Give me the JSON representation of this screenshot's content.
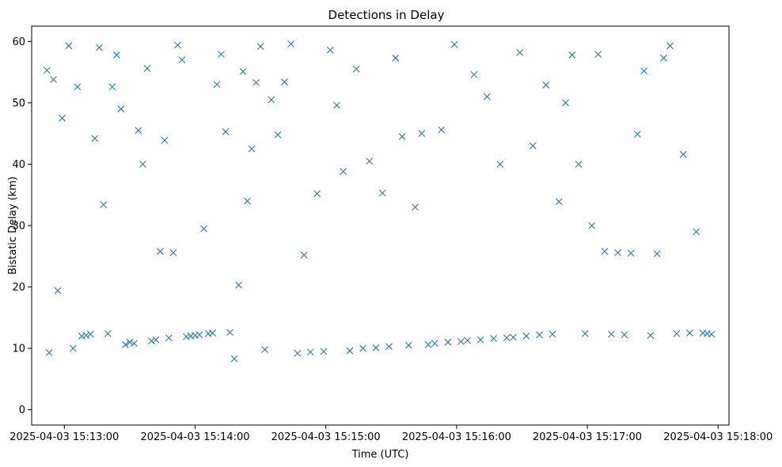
{
  "chart_data": {
    "type": "scatter",
    "title": "Detections in Delay",
    "xlabel": "Time (UTC)",
    "ylabel": "Bistatic Delay (km)",
    "marker": "x",
    "color": "#1f77b4",
    "grid": false,
    "legend": "none",
    "xlim": [
      "2025-04-03 15:12:45",
      "2025-04-03 15:18:05"
    ],
    "ylim": [
      -2.5,
      62.5
    ],
    "xticks": [
      {
        "t": "2025-04-03 15:13:00",
        "label": "2025-04-03 15:13:00"
      },
      {
        "t": "2025-04-03 15:14:00",
        "label": "2025-04-03 15:14:00"
      },
      {
        "t": "2025-04-03 15:15:00",
        "label": "2025-04-03 15:15:00"
      },
      {
        "t": "2025-04-03 15:16:00",
        "label": "2025-04-03 15:16:00"
      },
      {
        "t": "2025-04-03 15:17:00",
        "label": "2025-04-03 15:17:00"
      },
      {
        "t": "2025-04-03 15:18:00",
        "label": "2025-04-03 15:18:00"
      }
    ],
    "yticks": [
      {
        "v": 0,
        "label": "0"
      },
      {
        "v": 10,
        "label": "10"
      },
      {
        "v": 20,
        "label": "20"
      },
      {
        "v": 30,
        "label": "30"
      },
      {
        "v": 40,
        "label": "40"
      },
      {
        "v": 50,
        "label": "50"
      },
      {
        "v": 60,
        "label": "60"
      }
    ],
    "series": [
      {
        "x": [
          "2025-04-03 15:12:52",
          "2025-04-03 15:12:53",
          "2025-04-03 15:12:55",
          "2025-04-03 15:12:57",
          "2025-04-03 15:12:59",
          "2025-04-03 15:13:02",
          "2025-04-03 15:13:04",
          "2025-04-03 15:13:06",
          "2025-04-03 15:13:08",
          "2025-04-03 15:13:10",
          "2025-04-03 15:13:12",
          "2025-04-03 15:13:14",
          "2025-04-03 15:13:16",
          "2025-04-03 15:13:18",
          "2025-04-03 15:13:20",
          "2025-04-03 15:13:22",
          "2025-04-03 15:13:24",
          "2025-04-03 15:13:26",
          "2025-04-03 15:13:28",
          "2025-04-03 15:13:30",
          "2025-04-03 15:13:32",
          "2025-04-03 15:13:34",
          "2025-04-03 15:13:36",
          "2025-04-03 15:13:38",
          "2025-04-03 15:13:40",
          "2025-04-03 15:13:42",
          "2025-04-03 15:13:44",
          "2025-04-03 15:13:46",
          "2025-04-03 15:13:48",
          "2025-04-03 15:13:50",
          "2025-04-03 15:13:52",
          "2025-04-03 15:13:54",
          "2025-04-03 15:13:56",
          "2025-04-03 15:13:58",
          "2025-04-03 15:14:00",
          "2025-04-03 15:14:02",
          "2025-04-03 15:14:04",
          "2025-04-03 15:14:06",
          "2025-04-03 15:14:08",
          "2025-04-03 15:14:10",
          "2025-04-03 15:14:12",
          "2025-04-03 15:14:14",
          "2025-04-03 15:14:16",
          "2025-04-03 15:14:18",
          "2025-04-03 15:14:20",
          "2025-04-03 15:14:22",
          "2025-04-03 15:14:24",
          "2025-04-03 15:14:26",
          "2025-04-03 15:14:28",
          "2025-04-03 15:14:30",
          "2025-04-03 15:14:32",
          "2025-04-03 15:14:35",
          "2025-04-03 15:14:38",
          "2025-04-03 15:14:41",
          "2025-04-03 15:14:44",
          "2025-04-03 15:14:47",
          "2025-04-03 15:14:50",
          "2025-04-03 15:14:53",
          "2025-04-03 15:14:56",
          "2025-04-03 15:14:59",
          "2025-04-03 15:15:02",
          "2025-04-03 15:15:05",
          "2025-04-03 15:15:08",
          "2025-04-03 15:15:11",
          "2025-04-03 15:15:14",
          "2025-04-03 15:15:17",
          "2025-04-03 15:15:20",
          "2025-04-03 15:15:23",
          "2025-04-03 15:15:26",
          "2025-04-03 15:15:29",
          "2025-04-03 15:15:32",
          "2025-04-03 15:15:35",
          "2025-04-03 15:15:38",
          "2025-04-03 15:15:41",
          "2025-04-03 15:15:44",
          "2025-04-03 15:15:47",
          "2025-04-03 15:15:50",
          "2025-04-03 15:15:53",
          "2025-04-03 15:15:56",
          "2025-04-03 15:15:59",
          "2025-04-03 15:16:02",
          "2025-04-03 15:16:05",
          "2025-04-03 15:16:08",
          "2025-04-03 15:16:11",
          "2025-04-03 15:16:14",
          "2025-04-03 15:16:17",
          "2025-04-03 15:16:20",
          "2025-04-03 15:16:23",
          "2025-04-03 15:16:26",
          "2025-04-03 15:16:29",
          "2025-04-03 15:16:32",
          "2025-04-03 15:16:35",
          "2025-04-03 15:16:38",
          "2025-04-03 15:16:41",
          "2025-04-03 15:16:44",
          "2025-04-03 15:16:47",
          "2025-04-03 15:16:50",
          "2025-04-03 15:16:53",
          "2025-04-03 15:16:56",
          "2025-04-03 15:16:59",
          "2025-04-03 15:17:02",
          "2025-04-03 15:17:05",
          "2025-04-03 15:17:08",
          "2025-04-03 15:17:11",
          "2025-04-03 15:17:14",
          "2025-04-03 15:17:17",
          "2025-04-03 15:17:20",
          "2025-04-03 15:17:23",
          "2025-04-03 15:17:26",
          "2025-04-03 15:17:29",
          "2025-04-03 15:17:32",
          "2025-04-03 15:17:35",
          "2025-04-03 15:17:38",
          "2025-04-03 15:17:41",
          "2025-04-03 15:17:44",
          "2025-04-03 15:17:47",
          "2025-04-03 15:17:50",
          "2025-04-03 15:17:53",
          "2025-04-03 15:17:55",
          "2025-04-03 15:17:57"
        ],
        "y": [
          55.3,
          9.3,
          53.8,
          19.4,
          47.5,
          59.3,
          10.0,
          52.6,
          12.0,
          12.1,
          12.3,
          44.2,
          59.0,
          33.4,
          12.4,
          52.6,
          57.8,
          49.0,
          10.6,
          11.0,
          10.8,
          45.5,
          40.0,
          55.6,
          11.2,
          11.4,
          25.8,
          43.9,
          11.7,
          25.6,
          59.4,
          57.0,
          11.9,
          12.0,
          12.1,
          12.2,
          29.5,
          12.4,
          12.5,
          53.0,
          57.9,
          45.3,
          12.6,
          8.3,
          20.3,
          55.1,
          34.0,
          42.5,
          53.3,
          59.2,
          9.8,
          50.5,
          44.8,
          53.4,
          59.6,
          9.2,
          25.2,
          9.4,
          35.2,
          9.5,
          58.6,
          49.6,
          38.8,
          9.6,
          55.5,
          10.0,
          40.5,
          10.1,
          35.3,
          10.3,
          57.3,
          44.5,
          10.5,
          33.0,
          45.0,
          10.6,
          10.8,
          45.6,
          11.0,
          59.5,
          11.1,
          11.3,
          54.6,
          11.4,
          51.0,
          11.6,
          40.0,
          11.7,
          11.8,
          58.2,
          12.0,
          43.0,
          12.2,
          52.9,
          12.3,
          33.9,
          50.0,
          57.8,
          40.0,
          12.4,
          30.0,
          57.9,
          25.8,
          12.3,
          25.6,
          12.2,
          25.5,
          44.9,
          55.2,
          12.1,
          25.4,
          57.3,
          59.3,
          12.4,
          41.6,
          12.5,
          29.0,
          12.5,
          12.4,
          12.3
        ]
      }
    ]
  }
}
